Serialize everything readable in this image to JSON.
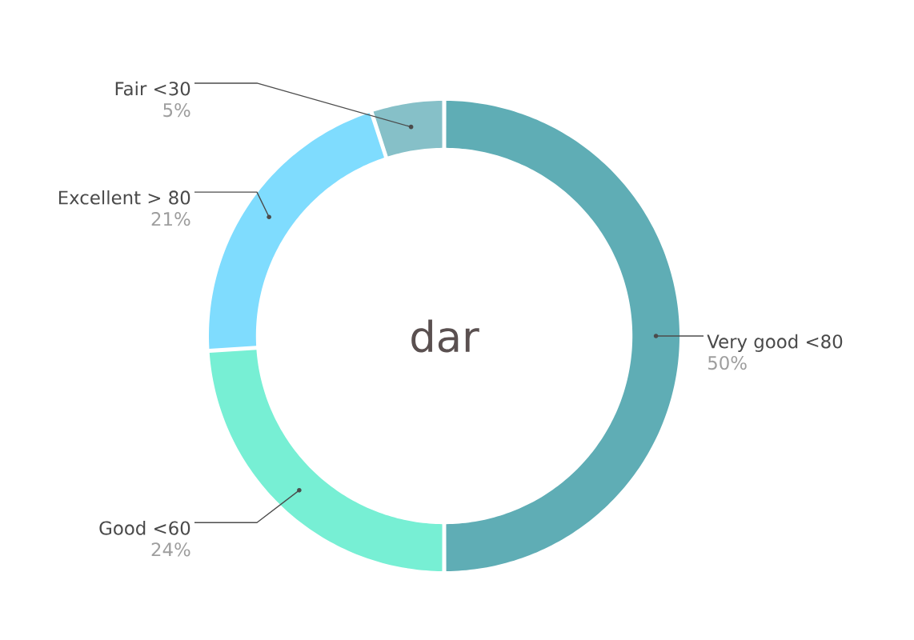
{
  "chart_data": {
    "type": "donut",
    "title": "dar",
    "categories": [
      "Very good <80",
      "Good <60",
      "Excellent > 80",
      "Fair <30"
    ],
    "values": [
      50,
      24,
      21,
      5
    ],
    "value_labels": [
      "50%",
      "24%",
      "21%",
      "5%"
    ],
    "colors": [
      "#5fadb5",
      "#77efd4",
      "#7fdcfe",
      "#86c0c8"
    ]
  }
}
